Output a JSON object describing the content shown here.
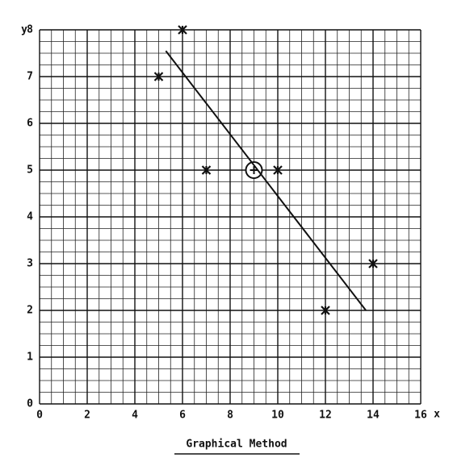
{
  "chart_data": {
    "type": "scatter",
    "title": "Graphical Method",
    "x_label": "x",
    "y_label": "y",
    "xlim": [
      0,
      16
    ],
    "ylim": [
      0,
      8
    ],
    "xticks": [
      0,
      2,
      4,
      6,
      8,
      10,
      12,
      14,
      16
    ],
    "yticks": [
      0,
      1,
      2,
      3,
      4,
      5,
      6,
      7,
      8
    ],
    "grid": {
      "x_divisions": 4,
      "y_divisions": 4
    },
    "series": [
      {
        "x": [
          5,
          6,
          7,
          10,
          12,
          14
        ],
        "values": [
          7,
          8,
          5,
          5,
          2,
          3
        ],
        "marker": "x",
        "color": "#111111"
      },
      {
        "x": [
          9
        ],
        "values": [
          5
        ],
        "marker": "circle-plus",
        "color": "#111111"
      },
      {
        "x": [
          5.3,
          13.7
        ],
        "values": [
          7.55,
          2.0
        ],
        "marker": "line",
        "color": "#111111"
      }
    ]
  }
}
